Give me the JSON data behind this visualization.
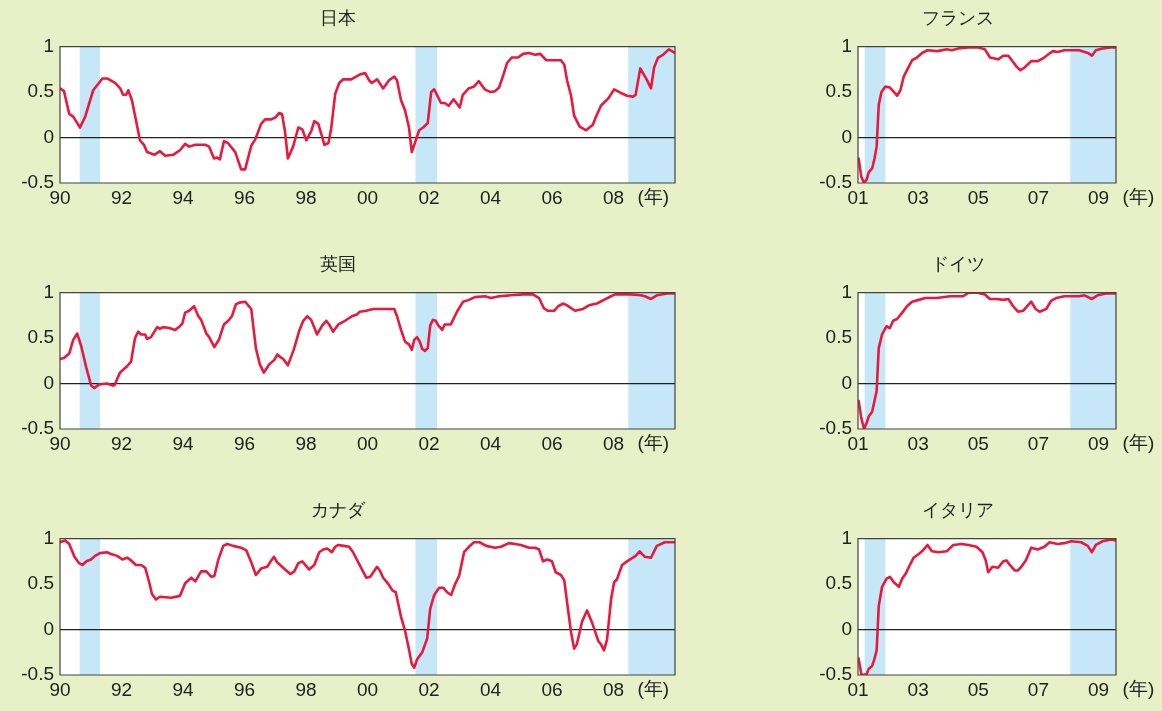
{
  "chart_data": [
    {
      "type": "line",
      "title": "日本",
      "xlabel": "(年)",
      "color": "#e8193c",
      "marker": "none",
      "grid": false,
      "legend": false,
      "xlim": [
        1990,
        2010
      ],
      "xticks": [
        {
          "value": 1990,
          "label": "90"
        },
        {
          "value": 1992,
          "label": "92"
        },
        {
          "value": 1994,
          "label": "94"
        },
        {
          "value": 1996,
          "label": "96"
        },
        {
          "value": 1998,
          "label": "98"
        },
        {
          "value": 2000,
          "label": "00"
        },
        {
          "value": 2002,
          "label": "02"
        },
        {
          "value": 2004,
          "label": "04"
        },
        {
          "value": 2006,
          "label": "06"
        },
        {
          "value": 2008,
          "label": "08"
        }
      ],
      "ylim": [
        -0.5,
        1
      ],
      "yticks": [
        -0.5,
        0,
        0.5,
        1
      ],
      "bands": [
        {
          "axis": "x",
          "from": 1990.64,
          "to": 1991.3,
          "color": "#c6e7f7"
        },
        {
          "axis": "x",
          "from": 2001.56,
          "to": 2002.26,
          "color": "#c6e7f7"
        },
        {
          "axis": "x",
          "from": 2008.48,
          "to": 2010,
          "color": "#c6e7f7"
        }
      ],
      "ref_lines": [
        {
          "axis": "y",
          "value": 0,
          "color": "#222222"
        }
      ],
      "x": [
        1990.0,
        1990.13,
        1990.3,
        1990.43,
        1990.65,
        1990.82,
        1991.08,
        1991.38,
        1991.53,
        1991.79,
        1991.96,
        1992.05,
        1992.15,
        1992.22,
        1992.34,
        1992.6,
        1992.73,
        1992.83,
        1993.07,
        1993.25,
        1993.42,
        1993.68,
        1993.9,
        1994.07,
        1994.2,
        1994.4,
        1994.72,
        1994.85,
        1995.01,
        1995.11,
        1995.2,
        1995.33,
        1995.46,
        1995.7,
        1995.89,
        1996.02,
        1996.22,
        1996.35,
        1996.54,
        1996.67,
        1996.87,
        1997.0,
        1997.13,
        1997.22,
        1997.32,
        1997.41,
        1997.58,
        1997.75,
        1997.88,
        1998.01,
        1998.17,
        1998.27,
        1998.4,
        1998.6,
        1998.73,
        1998.82,
        1998.95,
        1999.08,
        1999.21,
        1999.47,
        1999.73,
        1999.92,
        2000.05,
        2000.14,
        2000.31,
        2000.51,
        2000.7,
        2000.87,
        2000.96,
        2001.09,
        2001.22,
        2001.35,
        2001.44,
        2001.55,
        2001.68,
        2001.81,
        2001.96,
        2002.07,
        2002.17,
        2002.39,
        2002.51,
        2002.64,
        2002.8,
        2003.0,
        2003.1,
        2003.29,
        2003.46,
        2003.62,
        2003.81,
        2004.01,
        2004.15,
        2004.28,
        2004.43,
        2004.54,
        2004.69,
        2004.9,
        2005.06,
        2005.25,
        2005.45,
        2005.62,
        2005.81,
        2006.03,
        2006.29,
        2006.4,
        2006.49,
        2006.62,
        2006.72,
        2006.9,
        2007.11,
        2007.33,
        2007.42,
        2007.59,
        2007.83,
        2008.02,
        2008.24,
        2008.44,
        2008.63,
        2008.72,
        2008.87,
        2009.06,
        2009.22,
        2009.32,
        2009.45,
        2009.61,
        2009.8,
        2010.0
      ],
      "values": [
        0.54,
        0.51,
        0.26,
        0.23,
        0.11,
        0.23,
        0.52,
        0.65,
        0.65,
        0.6,
        0.54,
        0.47,
        0.47,
        0.52,
        0.41,
        -0.03,
        -0.08,
        -0.16,
        -0.19,
        -0.15,
        -0.2,
        -0.19,
        -0.14,
        -0.07,
        -0.1,
        -0.08,
        -0.08,
        -0.1,
        -0.23,
        -0.22,
        -0.24,
        -0.04,
        -0.06,
        -0.16,
        -0.35,
        -0.35,
        -0.09,
        -0.02,
        0.15,
        0.2,
        0.2,
        0.22,
        0.27,
        0.26,
        0.06,
        -0.23,
        -0.1,
        0.11,
        0.09,
        -0.03,
        0.07,
        0.18,
        0.15,
        -0.08,
        -0.06,
        0.1,
        0.48,
        0.6,
        0.64,
        0.64,
        0.69,
        0.71,
        0.63,
        0.6,
        0.64,
        0.54,
        0.63,
        0.67,
        0.63,
        0.41,
        0.3,
        0.11,
        -0.16,
        -0.05,
        0.08,
        0.11,
        0.16,
        0.5,
        0.53,
        0.38,
        0.38,
        0.35,
        0.42,
        0.33,
        0.47,
        0.54,
        0.56,
        0.62,
        0.53,
        0.5,
        0.51,
        0.55,
        0.7,
        0.82,
        0.88,
        0.88,
        0.92,
        0.93,
        0.91,
        0.92,
        0.85,
        0.85,
        0.85,
        0.8,
        0.63,
        0.46,
        0.24,
        0.12,
        0.08,
        0.14,
        0.22,
        0.35,
        0.43,
        0.53,
        0.49,
        0.46,
        0.45,
        0.47,
        0.76,
        0.65,
        0.54,
        0.77,
        0.88,
        0.91,
        0.97,
        0.93
      ]
    },
    {
      "type": "line",
      "title": "フランス",
      "xlabel": "(年)",
      "color": "#e8193c",
      "marker": "none",
      "grid": false,
      "legend": false,
      "xlim": [
        2001,
        2009.58
      ],
      "xticks": [
        {
          "value": 2001,
          "label": "01"
        },
        {
          "value": 2003,
          "label": "03"
        },
        {
          "value": 2005,
          "label": "05"
        },
        {
          "value": 2007,
          "label": "07"
        },
        {
          "value": 2009,
          "label": "09"
        }
      ],
      "ylim": [
        -0.5,
        1
      ],
      "yticks": [
        -0.5,
        0,
        0.5,
        1
      ],
      "bands": [
        {
          "axis": "x",
          "from": 2001.22,
          "to": 2001.91,
          "color": "#c6e7f7"
        },
        {
          "axis": "x",
          "from": 2008.06,
          "to": 2009.58,
          "color": "#c6e7f7"
        }
      ],
      "ref_lines": [
        {
          "axis": "y",
          "value": 0,
          "color": "#222222"
        }
      ],
      "x": [
        2001.02,
        2001.11,
        2001.2,
        2001.29,
        2001.36,
        2001.47,
        2001.55,
        2001.62,
        2001.69,
        2001.78,
        2001.91,
        2002.06,
        2002.17,
        2002.3,
        2002.41,
        2002.52,
        2002.69,
        2002.8,
        2002.96,
        2003.13,
        2003.31,
        2003.64,
        2003.95,
        2004.12,
        2004.34,
        2004.67,
        2005.0,
        2005.22,
        2005.39,
        2005.66,
        2005.83,
        2006.0,
        2006.16,
        2006.27,
        2006.4,
        2006.54,
        2006.76,
        2006.98,
        2007.15,
        2007.31,
        2007.48,
        2007.64,
        2007.86,
        2008.09,
        2008.36,
        2008.64,
        2008.78,
        2008.91,
        2009.13,
        2009.41,
        2009.57
      ],
      "values": [
        -0.23,
        -0.43,
        -0.5,
        -0.46,
        -0.38,
        -0.34,
        -0.23,
        -0.1,
        0.36,
        0.5,
        0.56,
        0.55,
        0.51,
        0.46,
        0.52,
        0.67,
        0.78,
        0.85,
        0.88,
        0.93,
        0.96,
        0.95,
        0.97,
        0.96,
        0.98,
        0.99,
        0.99,
        0.97,
        0.88,
        0.86,
        0.9,
        0.9,
        0.83,
        0.78,
        0.74,
        0.77,
        0.84,
        0.84,
        0.87,
        0.91,
        0.95,
        0.94,
        0.96,
        0.96,
        0.96,
        0.93,
        0.9,
        0.96,
        0.98,
        0.99,
        0.99
      ]
    },
    {
      "type": "line",
      "title": "英国",
      "xlabel": "(年)",
      "color": "#e8193c",
      "marker": "none",
      "grid": false,
      "legend": false,
      "xlim": [
        1990,
        2010
      ],
      "xticks": [
        {
          "value": 1990,
          "label": "90"
        },
        {
          "value": 1992,
          "label": "92"
        },
        {
          "value": 1994,
          "label": "94"
        },
        {
          "value": 1996,
          "label": "96"
        },
        {
          "value": 1998,
          "label": "98"
        },
        {
          "value": 2000,
          "label": "00"
        },
        {
          "value": 2002,
          "label": "02"
        },
        {
          "value": 2004,
          "label": "04"
        },
        {
          "value": 2006,
          "label": "06"
        },
        {
          "value": 2008,
          "label": "08"
        }
      ],
      "ylim": [
        -0.5,
        1
      ],
      "yticks": [
        -0.5,
        0,
        0.5,
        1
      ],
      "bands": [
        {
          "axis": "x",
          "from": 1990.64,
          "to": 1991.3,
          "color": "#c6e7f7"
        },
        {
          "axis": "x",
          "from": 2001.56,
          "to": 2002.26,
          "color": "#c6e7f7"
        },
        {
          "axis": "x",
          "from": 2008.48,
          "to": 2010,
          "color": "#c6e7f7"
        }
      ],
      "ref_lines": [
        {
          "axis": "y",
          "value": 0,
          "color": "#222222"
        }
      ],
      "x": [
        1990.0,
        1990.13,
        1990.3,
        1990.43,
        1990.56,
        1990.69,
        1990.86,
        1991.01,
        1991.11,
        1991.27,
        1991.53,
        1991.69,
        1991.77,
        1991.95,
        1992.18,
        1992.31,
        1992.44,
        1992.54,
        1992.64,
        1992.77,
        1992.83,
        1992.96,
        1993.16,
        1993.25,
        1993.35,
        1993.55,
        1993.75,
        1993.9,
        1993.98,
        1994.07,
        1994.2,
        1994.36,
        1994.5,
        1994.59,
        1994.76,
        1994.85,
        1995.02,
        1995.18,
        1995.33,
        1995.47,
        1995.59,
        1995.72,
        1995.83,
        1996.02,
        1996.22,
        1996.37,
        1996.5,
        1996.63,
        1996.8,
        1996.97,
        1997.07,
        1997.17,
        1997.26,
        1997.41,
        1997.6,
        1997.78,
        1997.91,
        1998.04,
        1998.17,
        1998.36,
        1998.53,
        1998.66,
        1998.75,
        1998.88,
        1999.05,
        1999.27,
        1999.49,
        1999.66,
        1999.75,
        1999.96,
        2000.18,
        2000.35,
        2000.62,
        2000.87,
        2000.96,
        2001.09,
        2001.22,
        2001.35,
        2001.44,
        2001.52,
        2001.61,
        2001.7,
        2001.78,
        2001.87,
        2001.96,
        2002.04,
        2002.13,
        2002.22,
        2002.3,
        2002.43,
        2002.51,
        2002.71,
        2002.91,
        2003.11,
        2003.3,
        2003.49,
        2003.82,
        2004.01,
        2004.28,
        2004.67,
        2005.06,
        2005.38,
        2005.58,
        2005.73,
        2005.86,
        2006.07,
        2006.2,
        2006.36,
        2006.49,
        2006.75,
        2007.01,
        2007.2,
        2007.46,
        2007.69,
        2007.92,
        2008.05,
        2008.57,
        2008.89,
        2009.02,
        2009.22,
        2009.41,
        2009.74,
        2010.0
      ],
      "values": [
        0.27,
        0.28,
        0.33,
        0.48,
        0.55,
        0.41,
        0.17,
        -0.02,
        -0.05,
        -0.01,
        0.0,
        -0.02,
        -0.02,
        0.12,
        0.19,
        0.24,
        0.5,
        0.57,
        0.54,
        0.54,
        0.49,
        0.51,
        0.62,
        0.6,
        0.62,
        0.61,
        0.59,
        0.63,
        0.66,
        0.78,
        0.8,
        0.85,
        0.74,
        0.7,
        0.55,
        0.51,
        0.4,
        0.49,
        0.65,
        0.69,
        0.74,
        0.87,
        0.89,
        0.9,
        0.82,
        0.39,
        0.21,
        0.12,
        0.21,
        0.26,
        0.32,
        0.29,
        0.27,
        0.2,
        0.37,
        0.58,
        0.69,
        0.74,
        0.7,
        0.54,
        0.64,
        0.69,
        0.65,
        0.57,
        0.65,
        0.69,
        0.74,
        0.76,
        0.79,
        0.8,
        0.82,
        0.82,
        0.82,
        0.82,
        0.74,
        0.59,
        0.46,
        0.43,
        0.37,
        0.48,
        0.51,
        0.46,
        0.38,
        0.36,
        0.39,
        0.64,
        0.7,
        0.69,
        0.64,
        0.59,
        0.65,
        0.65,
        0.79,
        0.9,
        0.92,
        0.95,
        0.96,
        0.94,
        0.96,
        0.97,
        0.98,
        0.98,
        0.94,
        0.83,
        0.8,
        0.8,
        0.85,
        0.88,
        0.86,
        0.8,
        0.82,
        0.86,
        0.88,
        0.92,
        0.96,
        0.98,
        0.98,
        0.97,
        0.96,
        0.93,
        0.97,
        0.99,
        0.99
      ]
    },
    {
      "type": "line",
      "title": "ドイツ",
      "xlabel": "(年)",
      "color": "#e8193c",
      "marker": "none",
      "grid": false,
      "legend": false,
      "xlim": [
        2001,
        2009.58
      ],
      "xticks": [
        {
          "value": 2001,
          "label": "01"
        },
        {
          "value": 2003,
          "label": "03"
        },
        {
          "value": 2005,
          "label": "05"
        },
        {
          "value": 2007,
          "label": "07"
        },
        {
          "value": 2009,
          "label": "09"
        }
      ],
      "ylim": [
        -0.5,
        1
      ],
      "yticks": [
        -0.5,
        0,
        0.5,
        1
      ],
      "bands": [
        {
          "axis": "x",
          "from": 2001.22,
          "to": 2001.91,
          "color": "#c6e7f7"
        },
        {
          "axis": "x",
          "from": 2008.06,
          "to": 2009.58,
          "color": "#c6e7f7"
        }
      ],
      "ref_lines": [
        {
          "axis": "y",
          "value": 0,
          "color": "#222222"
        }
      ],
      "x": [
        2001.02,
        2001.11,
        2001.2,
        2001.29,
        2001.36,
        2001.47,
        2001.55,
        2001.62,
        2001.69,
        2001.8,
        2001.95,
        2002.06,
        2002.17,
        2002.3,
        2002.47,
        2002.63,
        2002.8,
        2003.02,
        2003.24,
        2003.62,
        2004.06,
        2004.5,
        2004.67,
        2004.94,
        2005.22,
        2005.39,
        2005.61,
        2005.83,
        2006.0,
        2006.16,
        2006.32,
        2006.49,
        2006.76,
        2006.91,
        2007.04,
        2007.26,
        2007.42,
        2007.59,
        2007.86,
        2008.14,
        2008.36,
        2008.53,
        2008.78,
        2008.97,
        2009.24,
        2009.57
      ],
      "values": [
        -0.19,
        -0.38,
        -0.5,
        -0.43,
        -0.36,
        -0.31,
        -0.19,
        -0.08,
        0.39,
        0.54,
        0.63,
        0.61,
        0.69,
        0.71,
        0.78,
        0.85,
        0.9,
        0.92,
        0.94,
        0.94,
        0.96,
        0.96,
        1.0,
        1.0,
        0.98,
        0.93,
        0.93,
        0.92,
        0.93,
        0.85,
        0.79,
        0.8,
        0.9,
        0.82,
        0.79,
        0.82,
        0.91,
        0.94,
        0.96,
        0.96,
        0.96,
        0.97,
        0.93,
        0.97,
        0.99,
        0.99
      ]
    },
    {
      "type": "line",
      "title": "カナダ",
      "xlabel": "(年)",
      "color": "#e8193c",
      "marker": "none",
      "grid": false,
      "legend": false,
      "xlim": [
        1990,
        2010
      ],
      "xticks": [
        {
          "value": 1990,
          "label": "90"
        },
        {
          "value": 1992,
          "label": "92"
        },
        {
          "value": 1994,
          "label": "94"
        },
        {
          "value": 1996,
          "label": "96"
        },
        {
          "value": 1998,
          "label": "98"
        },
        {
          "value": 2000,
          "label": "00"
        },
        {
          "value": 2002,
          "label": "02"
        },
        {
          "value": 2004,
          "label": "04"
        },
        {
          "value": 2006,
          "label": "06"
        },
        {
          "value": 2008,
          "label": "08"
        }
      ],
      "ylim": [
        -0.5,
        1
      ],
      "yticks": [
        -0.5,
        0,
        0.5,
        1
      ],
      "bands": [
        {
          "axis": "x",
          "from": 1990.64,
          "to": 1991.3,
          "color": "#c6e7f7"
        },
        {
          "axis": "x",
          "from": 2001.56,
          "to": 2002.26,
          "color": "#c6e7f7"
        },
        {
          "axis": "x",
          "from": 2008.48,
          "to": 2010,
          "color": "#c6e7f7"
        }
      ],
      "ref_lines": [
        {
          "axis": "y",
          "value": 0,
          "color": "#222222"
        }
      ],
      "x": [
        1990.0,
        1990.17,
        1990.3,
        1990.47,
        1990.62,
        1990.73,
        1990.86,
        1991.01,
        1991.14,
        1991.3,
        1991.53,
        1991.66,
        1991.86,
        1992.03,
        1992.18,
        1992.31,
        1992.47,
        1992.64,
        1992.77,
        1992.9,
        1992.99,
        1993.12,
        1993.25,
        1993.62,
        1993.9,
        1994.07,
        1994.27,
        1994.4,
        1994.59,
        1994.76,
        1994.92,
        1995.02,
        1995.15,
        1995.31,
        1995.44,
        1995.63,
        1995.89,
        1996.06,
        1996.22,
        1996.37,
        1996.54,
        1996.74,
        1996.87,
        1996.96,
        1997.06,
        1997.32,
        1997.49,
        1997.62,
        1997.75,
        1997.88,
        1998.1,
        1998.27,
        1998.43,
        1998.56,
        1998.69,
        1998.84,
        1998.95,
        1999.05,
        1999.23,
        1999.4,
        1999.53,
        1999.73,
        1999.96,
        2000.09,
        2000.31,
        2000.4,
        2000.51,
        2000.68,
        2000.81,
        2000.92,
        2001.09,
        2001.22,
        2001.35,
        2001.44,
        2001.52,
        2001.61,
        2001.78,
        2001.94,
        2002.04,
        2002.17,
        2002.33,
        2002.46,
        2002.59,
        2002.72,
        2002.85,
        2002.98,
        2003.14,
        2003.3,
        2003.46,
        2003.64,
        2003.86,
        2004.15,
        2004.34,
        2004.6,
        2004.8,
        2004.99,
        2005.25,
        2005.45,
        2005.58,
        2005.71,
        2005.84,
        2006.0,
        2006.12,
        2006.29,
        2006.4,
        2006.49,
        2006.62,
        2006.72,
        2006.81,
        2006.98,
        2007.14,
        2007.31,
        2007.51,
        2007.59,
        2007.69,
        2007.79,
        2007.92,
        2008.02,
        2008.11,
        2008.28,
        2008.44,
        2008.63,
        2008.72,
        2008.85,
        2009.02,
        2009.22,
        2009.41,
        2009.67,
        2010.0
      ],
      "values": [
        0.96,
        0.98,
        0.94,
        0.8,
        0.73,
        0.71,
        0.75,
        0.77,
        0.81,
        0.84,
        0.85,
        0.83,
        0.81,
        0.77,
        0.79,
        0.76,
        0.71,
        0.71,
        0.68,
        0.52,
        0.39,
        0.33,
        0.36,
        0.35,
        0.37,
        0.51,
        0.57,
        0.53,
        0.64,
        0.64,
        0.58,
        0.59,
        0.77,
        0.92,
        0.94,
        0.92,
        0.9,
        0.87,
        0.74,
        0.6,
        0.67,
        0.69,
        0.76,
        0.8,
        0.74,
        0.66,
        0.61,
        0.64,
        0.73,
        0.75,
        0.66,
        0.71,
        0.85,
        0.88,
        0.89,
        0.85,
        0.91,
        0.93,
        0.92,
        0.91,
        0.85,
        0.72,
        0.57,
        0.58,
        0.69,
        0.65,
        0.57,
        0.5,
        0.43,
        0.41,
        0.14,
        -0.01,
        -0.22,
        -0.38,
        -0.42,
        -0.33,
        -0.25,
        -0.1,
        0.23,
        0.38,
        0.46,
        0.46,
        0.41,
        0.38,
        0.5,
        0.59,
        0.85,
        0.91,
        0.96,
        0.96,
        0.92,
        0.9,
        0.91,
        0.95,
        0.94,
        0.93,
        0.9,
        0.9,
        0.88,
        0.75,
        0.77,
        0.75,
        0.63,
        0.6,
        0.54,
        0.3,
        -0.03,
        -0.21,
        -0.16,
        0.09,
        0.21,
        0.07,
        -0.13,
        -0.16,
        -0.23,
        -0.11,
        0.33,
        0.52,
        0.55,
        0.71,
        0.75,
        0.79,
        0.81,
        0.86,
        0.8,
        0.79,
        0.92,
        0.96,
        0.96
      ]
    },
    {
      "type": "line",
      "title": "イタリア",
      "xlabel": "(年)",
      "color": "#e8193c",
      "marker": "none",
      "grid": false,
      "legend": false,
      "xlim": [
        2001,
        2009.58
      ],
      "xticks": [
        {
          "value": 2001,
          "label": "01"
        },
        {
          "value": 2003,
          "label": "03"
        },
        {
          "value": 2005,
          "label": "05"
        },
        {
          "value": 2007,
          "label": "07"
        },
        {
          "value": 2009,
          "label": "09"
        }
      ],
      "ylim": [
        -0.5,
        1
      ],
      "yticks": [
        -0.5,
        0,
        0.5,
        1
      ],
      "bands": [
        {
          "axis": "x",
          "from": 2001.22,
          "to": 2001.91,
          "color": "#c6e7f7"
        },
        {
          "axis": "x",
          "from": 2008.06,
          "to": 2009.58,
          "color": "#c6e7f7"
        }
      ],
      "ref_lines": [
        {
          "axis": "y",
          "value": 0,
          "color": "#222222"
        }
      ],
      "x": [
        2001.02,
        2001.11,
        2001.2,
        2001.29,
        2001.36,
        2001.47,
        2001.55,
        2001.62,
        2001.69,
        2001.8,
        2001.95,
        2002.06,
        2002.19,
        2002.36,
        2002.47,
        2002.58,
        2002.74,
        2002.85,
        2003.02,
        2003.16,
        2003.31,
        2003.46,
        2003.68,
        2003.95,
        2004.17,
        2004.45,
        2004.67,
        2004.94,
        2005.14,
        2005.25,
        2005.33,
        2005.47,
        2005.66,
        2005.83,
        2005.94,
        2006.05,
        2006.21,
        2006.32,
        2006.43,
        2006.58,
        2006.76,
        2006.98,
        2007.2,
        2007.37,
        2007.64,
        2007.86,
        2008.09,
        2008.42,
        2008.64,
        2008.78,
        2008.91,
        2009.13,
        2009.41,
        2009.57
      ],
      "values": [
        -0.32,
        -0.49,
        -0.5,
        -0.49,
        -0.43,
        -0.4,
        -0.32,
        -0.23,
        0.26,
        0.47,
        0.56,
        0.58,
        0.52,
        0.47,
        0.56,
        0.61,
        0.72,
        0.79,
        0.83,
        0.87,
        0.93,
        0.86,
        0.85,
        0.86,
        0.93,
        0.94,
        0.93,
        0.91,
        0.85,
        0.76,
        0.63,
        0.69,
        0.68,
        0.75,
        0.76,
        0.71,
        0.65,
        0.65,
        0.69,
        0.76,
        0.9,
        0.88,
        0.91,
        0.96,
        0.94,
        0.95,
        0.97,
        0.96,
        0.92,
        0.85,
        0.93,
        0.97,
        0.99,
        0.98
      ]
    }
  ]
}
